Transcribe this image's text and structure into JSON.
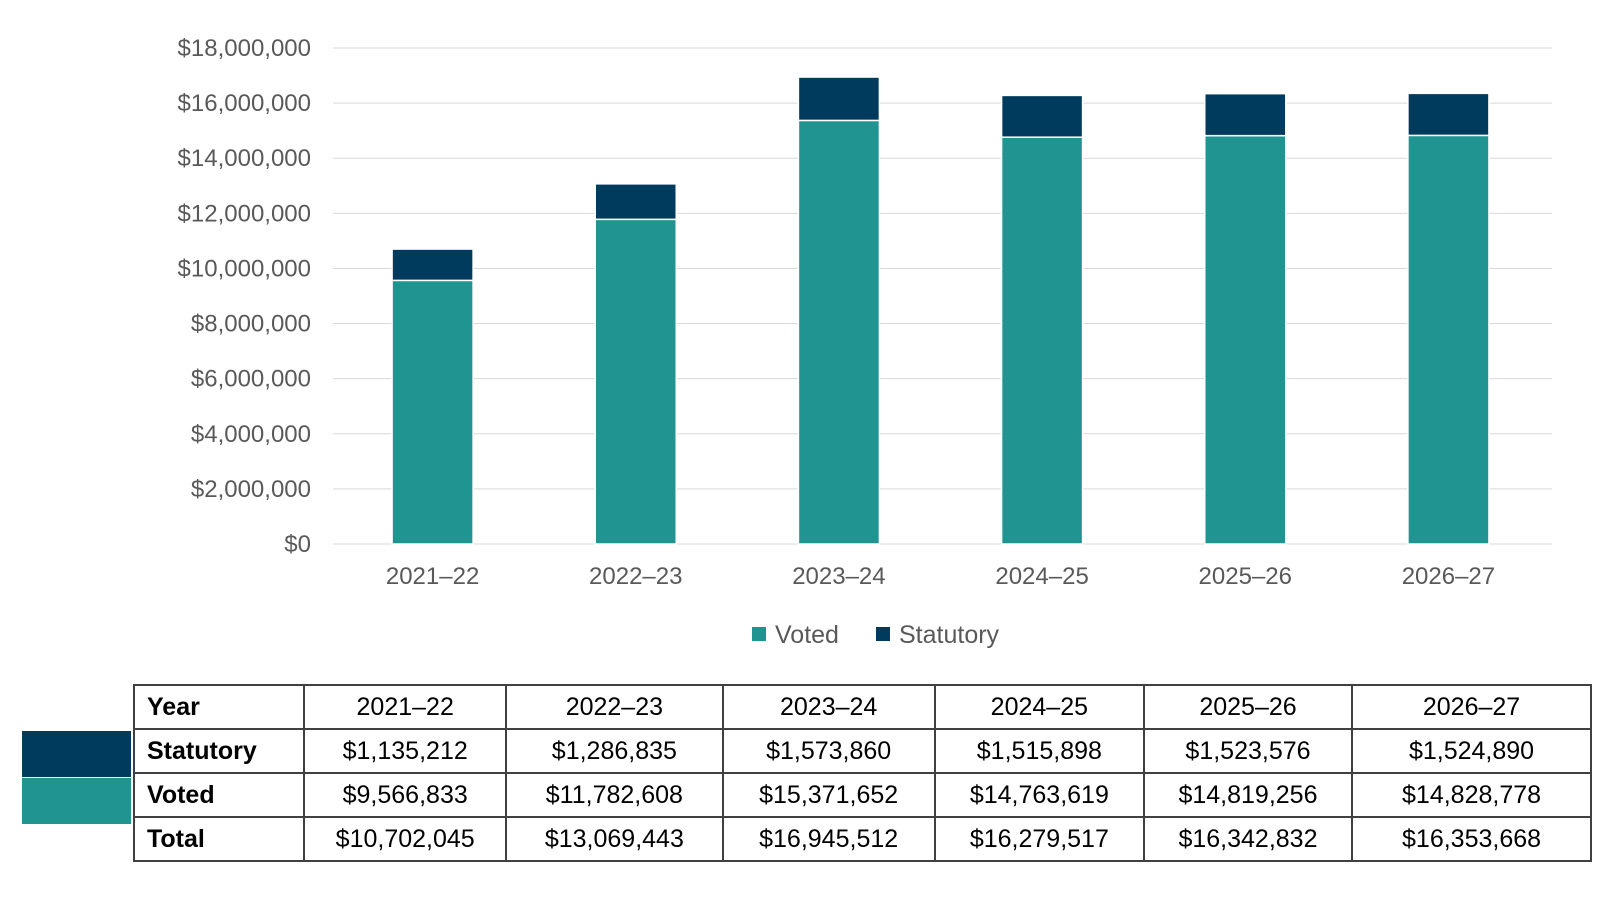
{
  "colors": {
    "voted": "#209491",
    "statutory": "#003A5D",
    "grid": "#d9d9d9",
    "axis_text": "#595959"
  },
  "chart_data": {
    "type": "bar",
    "stacked": true,
    "categories": [
      "2021–22",
      "2022–23",
      "2023–24",
      "2024–25",
      "2025–26",
      "2026–27"
    ],
    "series": [
      {
        "name": "Voted",
        "values": [
          9566833,
          11782608,
          15371652,
          14763619,
          14819256,
          14828778
        ]
      },
      {
        "name": "Statutory",
        "values": [
          1135212,
          1286835,
          1573860,
          1515898,
          1523576,
          1524890
        ]
      }
    ],
    "ylim": [
      0,
      18000000
    ],
    "yticks": [
      "$0",
      "$2,000,000",
      "$4,000,000",
      "$6,000,000",
      "$8,000,000",
      "$10,000,000",
      "$12,000,000",
      "$14,000,000",
      "$16,000,000",
      "$18,000,000"
    ],
    "grid": true,
    "legend_position": "bottom",
    "title": "",
    "xlabel": "",
    "ylabel": ""
  },
  "table": {
    "header": [
      "Year",
      "2021–22",
      "2022–23",
      "2023–24",
      "2024–25",
      "2025–26",
      "2026–27"
    ],
    "rows": [
      [
        "Statutory",
        "$1,135,212",
        "$1,286,835",
        "$1,573,860",
        "$1,515,898",
        "$1,523,576",
        "$1,524,890"
      ],
      [
        "Voted",
        "$9,566,833",
        "$11,782,608",
        "$15,371,652",
        "$14,763,619",
        "$14,819,256",
        "$14,828,778"
      ],
      [
        "Total",
        "$10,702,045",
        "$13,069,443",
        "$16,945,512",
        "$16,279,517",
        "$16,342,832",
        "$16,353,668"
      ]
    ]
  }
}
